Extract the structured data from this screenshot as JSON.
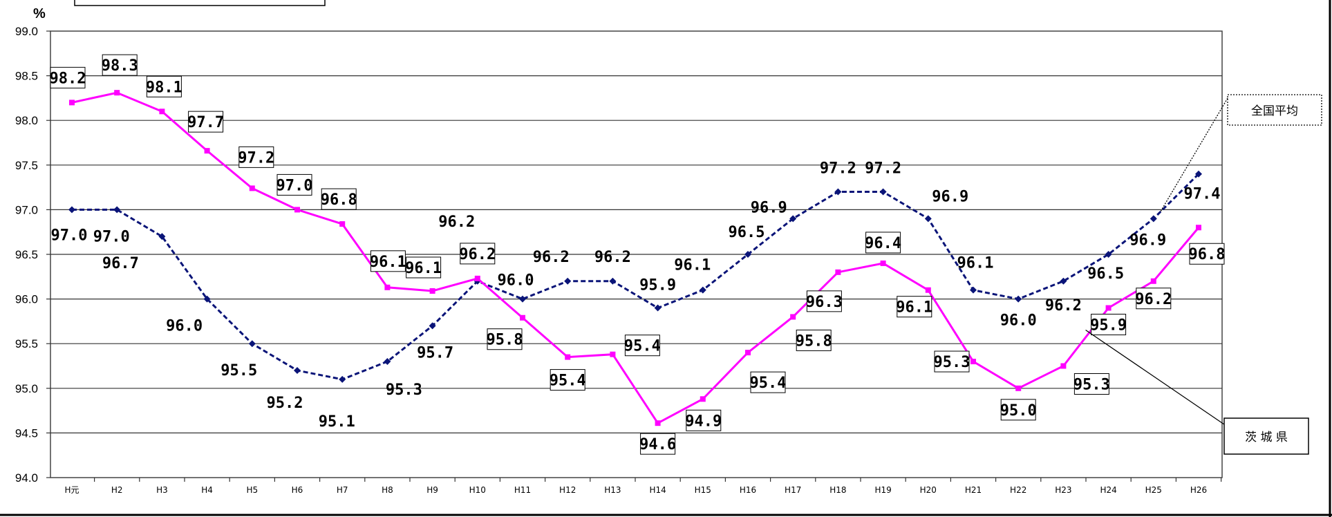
{
  "chart_data": {
    "type": "line",
    "ylabel": "%",
    "ylim": [
      94.0,
      99.0
    ],
    "yticks": [
      "94.0",
      "94.5",
      "95.0",
      "95.5",
      "96.0",
      "96.5",
      "97.0",
      "97.5",
      "98.0",
      "98.5",
      "99.0"
    ],
    "categories": [
      "H元",
      "H2",
      "H3",
      "H4",
      "H5",
      "H6",
      "H7",
      "H8",
      "H9",
      "H10",
      "H11",
      "H12",
      "H13",
      "H14",
      "H15",
      "H16",
      "H17",
      "H18",
      "H19",
      "H20",
      "H21",
      "H22",
      "H23",
      "H24",
      "H25",
      "H26"
    ],
    "grid": true,
    "series": [
      {
        "name": "全国平均",
        "color": "#0a1478",
        "style": "dashed",
        "marker": "diamond",
        "values": [
          97.0,
          97.0,
          96.7,
          96.0,
          95.5,
          95.2,
          95.1,
          95.3,
          95.7,
          96.2,
          96.0,
          96.2,
          96.2,
          95.9,
          96.1,
          96.5,
          96.9,
          97.2,
          97.2,
          96.9,
          96.1,
          96.0,
          96.2,
          96.5,
          96.9,
          97.4
        ],
        "labels": [
          "97.0",
          "97.0",
          "96.7",
          "96.0",
          "95.5",
          "95.2",
          "95.1",
          "95.3",
          "95.7",
          "96.2",
          "96.0",
          "96.2",
          "96.2",
          "95.9",
          "96.1",
          "96.5",
          "96.9",
          "97.2",
          "97.2",
          "96.9",
          "96.1",
          "96.0",
          "96.2",
          "96.5",
          "96.9",
          "97.4"
        ]
      },
      {
        "name": "茨 城 県",
        "color": "#ff00ff",
        "style": "solid",
        "marker": "square",
        "values": [
          98.2,
          98.31,
          98.1,
          97.66,
          97.24,
          97.0,
          96.84,
          96.13,
          96.09,
          96.23,
          95.79,
          95.35,
          95.38,
          94.61,
          94.88,
          95.4,
          95.8,
          96.3,
          96.4,
          96.1,
          95.3,
          95.0,
          95.25,
          95.9,
          96.2,
          96.8
        ],
        "labels": [
          "98.2",
          "98.3",
          "98.1",
          "97.7",
          "97.2",
          "97.0",
          "96.8",
          "96.1",
          "96.1",
          "96.2",
          "95.8",
          "95.4",
          "95.4",
          "94.6",
          "94.9",
          "95.4",
          "95.8",
          "96.3",
          "96.4",
          "96.1",
          "95.3",
          "95.0",
          "95.3",
          "95.9",
          "96.2",
          "96.8"
        ]
      }
    ],
    "legend": [
      "全国平均",
      "茨 城 県"
    ]
  }
}
